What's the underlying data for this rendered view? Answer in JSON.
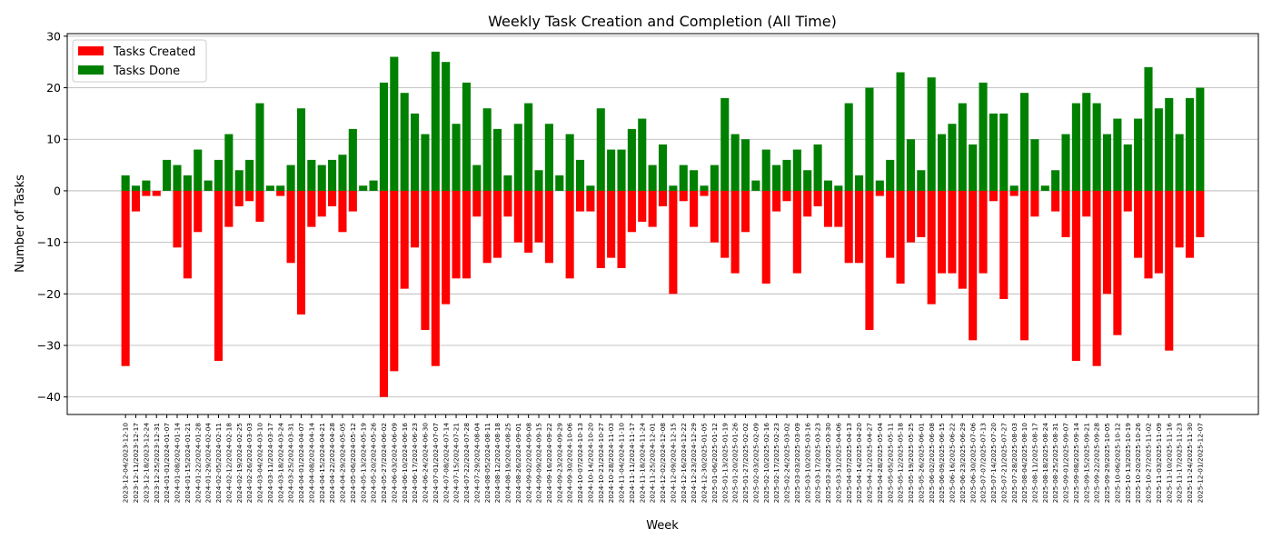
{
  "chart_data": {
    "type": "bar",
    "title": "Weekly Task Creation and Completion (All Time)",
    "xlabel": "Week",
    "ylabel": "Number of Tasks",
    "ylim": [
      -43.4,
      30.5
    ],
    "yticks": [
      -40,
      -30,
      -20,
      -10,
      0,
      10,
      20,
      30
    ],
    "grid": "y",
    "legend_position": "top-left",
    "categories": [
      "2023-12-04/2023-12-10",
      "2023-12-11/2023-12-17",
      "2023-12-18/2023-12-24",
      "2023-12-25/2023-12-31",
      "2024-01-01/2024-01-07",
      "2024-01-08/2024-01-14",
      "2024-01-15/2024-01-21",
      "2024-01-22/2024-01-28",
      "2024-01-29/2024-02-04",
      "2024-02-05/2024-02-11",
      "2024-02-12/2024-02-18",
      "2024-02-19/2024-02-25",
      "2024-02-26/2024-03-03",
      "2024-03-04/2024-03-10",
      "2024-03-11/2024-03-17",
      "2024-03-18/2024-03-24",
      "2024-03-25/2024-03-31",
      "2024-04-01/2024-04-07",
      "2024-04-08/2024-04-14",
      "2024-04-15/2024-04-21",
      "2024-04-22/2024-04-28",
      "2024-04-29/2024-05-05",
      "2024-05-06/2024-05-12",
      "2024-05-13/2024-05-19",
      "2024-05-20/2024-05-26",
      "2024-05-27/2024-06-02",
      "2024-06-03/2024-06-09",
      "2024-06-10/2024-06-16",
      "2024-06-17/2024-06-23",
      "2024-06-24/2024-06-30",
      "2024-07-01/2024-07-07",
      "2024-07-08/2024-07-14",
      "2024-07-15/2024-07-21",
      "2024-07-22/2024-07-28",
      "2024-07-29/2024-08-04",
      "2024-08-05/2024-08-11",
      "2024-08-12/2024-08-18",
      "2024-08-19/2024-08-25",
      "2024-08-26/2024-09-01",
      "2024-09-02/2024-09-08",
      "2024-09-09/2024-09-15",
      "2024-09-16/2024-09-22",
      "2024-09-23/2024-09-29",
      "2024-09-30/2024-10-06",
      "2024-10-07/2024-10-13",
      "2024-10-14/2024-10-20",
      "2024-10-21/2024-10-27",
      "2024-10-28/2024-11-03",
      "2024-11-04/2024-11-10",
      "2024-11-11/2024-11-17",
      "2024-11-18/2024-11-24",
      "2024-11-25/2024-12-01",
      "2024-12-02/2024-12-08",
      "2024-12-09/2024-12-15",
      "2024-12-16/2024-12-22",
      "2024-12-23/2024-12-29",
      "2024-12-30/2025-01-05",
      "2025-01-06/2025-01-12",
      "2025-01-13/2025-01-19",
      "2025-01-20/2025-01-26",
      "2025-01-27/2025-02-02",
      "2025-02-03/2025-02-09",
      "2025-02-10/2025-02-16",
      "2025-02-17/2025-02-23",
      "2025-02-24/2025-03-02",
      "2025-03-03/2025-03-09",
      "2025-03-10/2025-03-16",
      "2025-03-17/2025-03-23",
      "2025-03-24/2025-03-30",
      "2025-03-31/2025-04-06",
      "2025-04-07/2025-04-13",
      "2025-04-14/2025-04-20",
      "2025-04-21/2025-04-27",
      "2025-04-28/2025-05-04",
      "2025-05-05/2025-05-11",
      "2025-05-12/2025-05-18",
      "2025-05-19/2025-05-25",
      "2025-05-26/2025-06-01",
      "2025-06-02/2025-06-08",
      "2025-06-09/2025-06-15",
      "2025-06-16/2025-06-22",
      "2025-06-23/2025-06-29",
      "2025-06-30/2025-07-06",
      "2025-07-07/2025-07-13",
      "2025-07-14/2025-07-20",
      "2025-07-21/2025-07-27",
      "2025-07-28/2025-08-03",
      "2025-08-04/2025-08-10",
      "2025-08-11/2025-08-17",
      "2025-08-18/2025-08-24",
      "2025-08-25/2025-08-31",
      "2025-09-01/2025-09-07",
      "2025-09-08/2025-09-14",
      "2025-09-15/2025-09-21",
      "2025-09-22/2025-09-28",
      "2025-09-29/2025-10-05",
      "2025-10-06/2025-10-12",
      "2025-10-13/2025-10-19",
      "2025-10-20/2025-10-26",
      "2025-10-27/2025-11-02",
      "2025-11-03/2025-11-09",
      "2025-11-10/2025-11-16",
      "2025-11-17/2025-11-23",
      "2025-11-24/2025-11-30",
      "2025-12-01/2025-12-07"
    ],
    "series": [
      {
        "name": "Tasks Created",
        "color": "#ff0000",
        "values": [
          -34,
          -4,
          -1,
          -1,
          0,
          -11,
          -17,
          -8,
          0,
          -33,
          -7,
          -3,
          -2,
          -6,
          0,
          -1,
          -14,
          -24,
          -7,
          -5,
          -3,
          -8,
          -4,
          0,
          0,
          -40,
          -35,
          -19,
          -11,
          -27,
          -34,
          -22,
          -17,
          -17,
          -5,
          -14,
          -13,
          -5,
          -10,
          -12,
          -10,
          -14,
          0,
          -17,
          -4,
          -4,
          -15,
          -13,
          -15,
          -8,
          -6,
          -7,
          -3,
          -20,
          -2,
          -7,
          -1,
          -10,
          -13,
          -16,
          -8,
          0,
          -18,
          -4,
          -2,
          -16,
          -5,
          -3,
          -7,
          -7,
          -14,
          -14,
          -27,
          -1,
          -13,
          -18,
          -10,
          -9,
          -22,
          -16,
          -16,
          -19,
          -29,
          -16,
          -2,
          -21,
          -1,
          -29,
          -5,
          0,
          -4,
          -9,
          -33,
          -5,
          -34,
          -20,
          -28,
          -4,
          -13,
          -17,
          -16,
          -31,
          -11,
          -13,
          -9
        ]
      },
      {
        "name": "Tasks Done",
        "color": "#008000",
        "values": [
          3,
          1,
          2,
          0,
          6,
          5,
          3,
          8,
          2,
          6,
          11,
          4,
          6,
          17,
          1,
          1,
          5,
          16,
          6,
          5,
          6,
          7,
          12,
          1,
          2,
          21,
          26,
          19,
          15,
          11,
          27,
          25,
          13,
          21,
          5,
          16,
          12,
          3,
          13,
          17,
          4,
          13,
          3,
          11,
          6,
          1,
          16,
          8,
          8,
          12,
          14,
          5,
          9,
          1,
          5,
          4,
          1,
          5,
          18,
          11,
          10,
          2,
          8,
          5,
          6,
          8,
          4,
          9,
          2,
          1,
          17,
          3,
          20,
          2,
          6,
          23,
          10,
          4,
          22,
          11,
          13,
          17,
          9,
          21,
          15,
          15,
          1,
          19,
          10,
          1,
          4,
          11,
          17,
          19,
          17,
          11,
          14,
          9,
          14,
          24,
          16,
          18,
          11,
          18,
          20
        ]
      }
    ]
  }
}
